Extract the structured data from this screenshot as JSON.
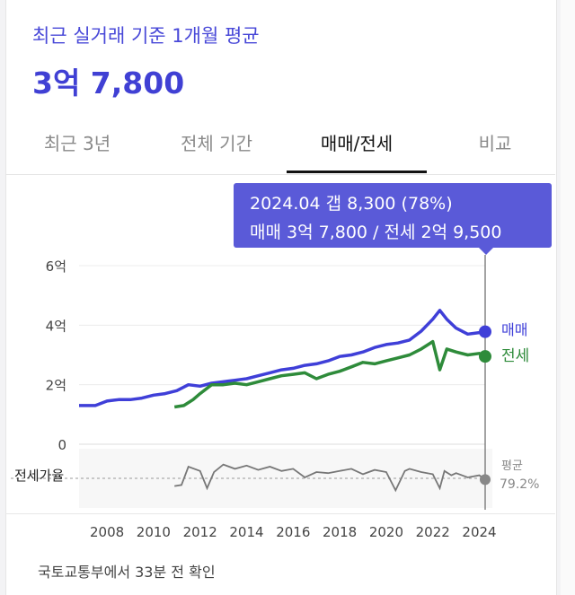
{
  "header": {
    "title": "최근 실거래 기준 1개월 평균",
    "price": "3억 7,800"
  },
  "tabs": [
    {
      "label": "최근 3년",
      "active": false
    },
    {
      "label": "전체 기간",
      "active": false
    },
    {
      "label": "매매/전세",
      "active": true
    },
    {
      "label": "비교",
      "active": false
    }
  ],
  "tooltip": {
    "line1": "2024.04  갭 8,300 (78%)",
    "line2": "매매 3억 7,800 / 전세 2억 9,500"
  },
  "legend": {
    "sale": "매매",
    "jeonse": "전세",
    "ratio_label": "전세가율",
    "ratio_avg_label": "평균",
    "ratio_avg_value": "79.2%"
  },
  "footer": {
    "text": "국토교통부에서 33분 전 확인"
  },
  "colors": {
    "sale": "#3f3fd8",
    "jeonse": "#2e8b3a",
    "ratio": "#777777",
    "accent": "#5a5ad8"
  },
  "chart_data": {
    "type": "line",
    "x_ticks": [
      "2008",
      "2010",
      "2012",
      "2014",
      "2016",
      "2018",
      "2020",
      "2022",
      "2024"
    ],
    "y_ticks": [
      "6억",
      "4억",
      "2억",
      "0"
    ],
    "ylim": [
      0,
      6
    ],
    "ylabel_unit": "억",
    "grid": true,
    "series": [
      {
        "name": "매매",
        "x": [
          2006.8,
          2007.5,
          2008.0,
          2008.5,
          2009.0,
          2009.5,
          2010.0,
          2010.5,
          2011.0,
          2011.5,
          2012.0,
          2012.5,
          2013.0,
          2013.5,
          2014.0,
          2014.5,
          2015.0,
          2015.5,
          2016.0,
          2016.5,
          2017.0,
          2017.5,
          2018.0,
          2018.5,
          2019.0,
          2019.5,
          2020.0,
          2020.5,
          2021.0,
          2021.5,
          2022.0,
          2022.3,
          2022.6,
          2023.0,
          2023.5,
          2024.0,
          2024.25
        ],
        "values": [
          1.3,
          1.3,
          1.45,
          1.5,
          1.5,
          1.55,
          1.65,
          1.7,
          1.8,
          2.0,
          1.95,
          2.05,
          2.1,
          2.15,
          2.2,
          2.3,
          2.4,
          2.5,
          2.55,
          2.65,
          2.7,
          2.8,
          2.95,
          3.0,
          3.1,
          3.25,
          3.35,
          3.4,
          3.5,
          3.8,
          4.2,
          4.5,
          4.2,
          3.9,
          3.7,
          3.75,
          3.78
        ]
      },
      {
        "name": "전세",
        "x": [
          2010.9,
          2011.3,
          2011.7,
          2012.0,
          2012.5,
          2013.0,
          2013.5,
          2014.0,
          2014.5,
          2015.0,
          2015.5,
          2016.0,
          2016.5,
          2017.0,
          2017.5,
          2018.0,
          2018.5,
          2019.0,
          2019.5,
          2020.0,
          2020.5,
          2021.0,
          2021.5,
          2022.0,
          2022.3,
          2022.6,
          2023.0,
          2023.5,
          2024.0,
          2024.25
        ],
        "values": [
          1.25,
          1.3,
          1.5,
          1.7,
          2.0,
          2.0,
          2.05,
          2.0,
          2.1,
          2.2,
          2.3,
          2.35,
          2.4,
          2.2,
          2.35,
          2.45,
          2.6,
          2.75,
          2.7,
          2.8,
          2.9,
          3.0,
          3.2,
          3.45,
          2.5,
          3.2,
          3.1,
          3.0,
          3.05,
          2.95
        ]
      },
      {
        "name": "전세가율",
        "x": [
          2010.9,
          2011.2,
          2011.5,
          2012.0,
          2012.3,
          2012.6,
          2013.0,
          2013.5,
          2014.0,
          2014.5,
          2015.0,
          2015.5,
          2016.0,
          2016.5,
          2017.0,
          2017.5,
          2018.0,
          2018.5,
          2019.0,
          2019.5,
          2020.0,
          2020.4,
          2020.8,
          2021.0,
          2021.5,
          2022.0,
          2022.3,
          2022.5,
          2022.8,
          2023.0,
          2023.5,
          2024.0,
          2024.25
        ],
        "values": [
          72,
          73,
          90,
          86,
          70,
          85,
          92,
          88,
          91,
          87,
          90,
          86,
          88,
          80,
          85,
          84,
          86,
          88,
          83,
          87,
          85,
          68,
          86,
          88,
          85,
          83,
          70,
          86,
          82,
          84,
          80,
          82,
          78
        ]
      }
    ],
    "ratio_average": 79.2,
    "cursor_x": 2024.25
  }
}
